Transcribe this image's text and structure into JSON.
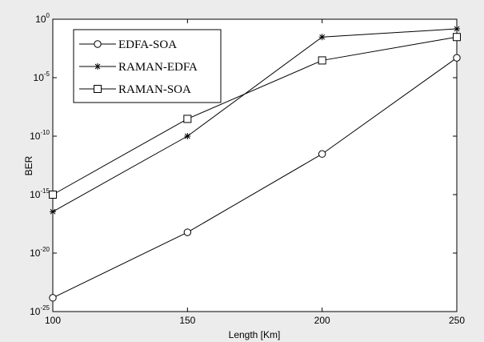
{
  "chart_data": {
    "type": "line",
    "title": "",
    "xlabel": "Length [Km]",
    "ylabel": "BER",
    "x": [
      100,
      150,
      200,
      250
    ],
    "xlim": [
      100,
      250
    ],
    "ylim": [
      1e-25,
      1
    ],
    "yscale": "log",
    "grid": false,
    "legend_position": "top-left",
    "x_ticks": [
      "100",
      "150",
      "200",
      "250"
    ],
    "y_ticks": [
      {
        "base": "10",
        "exp": "0",
        "value": 1
      },
      {
        "base": "10",
        "exp": "-5",
        "value": 1e-05
      },
      {
        "base": "10",
        "exp": "-10",
        "value": 1e-10
      },
      {
        "base": "10",
        "exp": "-15",
        "value": 1e-15
      },
      {
        "base": "10",
        "exp": "-20",
        "value": 1e-20
      },
      {
        "base": "10",
        "exp": "-25",
        "value": 1e-25
      }
    ],
    "series": [
      {
        "name": "EDFA-SOA",
        "marker": "circle",
        "values": [
          1.5e-24,
          6e-19,
          3e-12,
          0.0005
        ]
      },
      {
        "name": "RAMAN-EDFA",
        "marker": "star",
        "values": [
          3.5e-17,
          1e-10,
          0.03,
          0.15
        ]
      },
      {
        "name": "RAMAN-SOA",
        "marker": "square",
        "values": [
          1e-15,
          3e-09,
          0.0003,
          0.03
        ]
      }
    ]
  }
}
